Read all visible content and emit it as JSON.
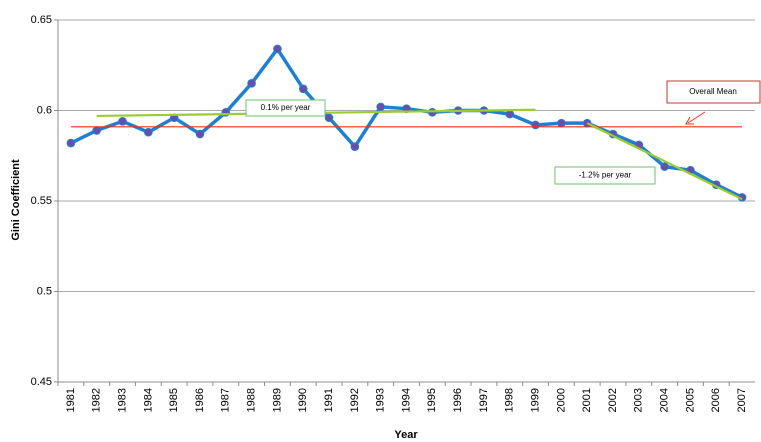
{
  "chart_data": {
    "type": "line",
    "y_label": "Gini Coefficient",
    "x_label": "Year",
    "categories": [
      "1981",
      "1982",
      "1983",
      "1984",
      "1985",
      "1986",
      "1987",
      "1988",
      "1989",
      "1990",
      "1991",
      "1992",
      "1993",
      "1994",
      "1995",
      "1996",
      "1997",
      "1998",
      "1999",
      "2000",
      "2001",
      "2002",
      "2003",
      "2004",
      "2005",
      "2006",
      "2007"
    ],
    "series": [
      {
        "color": "#1f7fd0",
        "marker_color": "#6a4fa8",
        "markers": true,
        "values": [
          0.582,
          0.589,
          0.594,
          0.588,
          0.596,
          0.587,
          0.599,
          0.615,
          0.634,
          0.612,
          0.596,
          0.58,
          0.602,
          0.601,
          0.599,
          0.6,
          0.6,
          0.598,
          0.592,
          0.593,
          0.593,
          0.587,
          0.581,
          0.569,
          0.567,
          0.559,
          0.552
        ]
      },
      {
        "color": "#e8321e",
        "markers": false,
        "values": [
          0.591,
          0.591,
          0.591,
          0.591,
          0.591,
          0.591,
          0.591,
          0.591,
          0.591,
          0.591,
          0.591,
          0.591,
          0.591,
          0.591,
          0.591,
          0.591,
          0.591,
          0.591,
          0.591,
          0.591,
          0.591,
          0.591,
          0.591,
          0.591,
          0.591,
          0.591,
          0.591
        ]
      },
      {
        "color": "#9acd32",
        "markers": false,
        "values": [
          null,
          0.597,
          0.5972,
          0.5974,
          0.5976,
          0.5978,
          0.598,
          0.5982,
          0.5984,
          0.5986,
          0.5988,
          0.599,
          0.5992,
          0.5994,
          0.5996,
          0.5998,
          0.6,
          0.6002,
          0.6004,
          null,
          null,
          null,
          null,
          null,
          null,
          null,
          null
        ]
      },
      {
        "color": "#9acd32",
        "markers": false,
        "values": [
          null,
          null,
          null,
          null,
          null,
          null,
          null,
          null,
          null,
          null,
          null,
          null,
          null,
          null,
          null,
          null,
          null,
          null,
          null,
          null,
          0.593,
          0.586,
          0.579,
          0.572,
          0.565,
          0.558,
          0.551
        ]
      }
    ],
    "annotations": [
      "Overall Mean",
      "0.1% per year",
      "-1.2% per year"
    ],
    "ylim": [
      0.45,
      0.65
    ],
    "yticks": [
      0.45,
      0.5,
      0.55,
      0.6,
      0.65
    ],
    "grid": true
  }
}
